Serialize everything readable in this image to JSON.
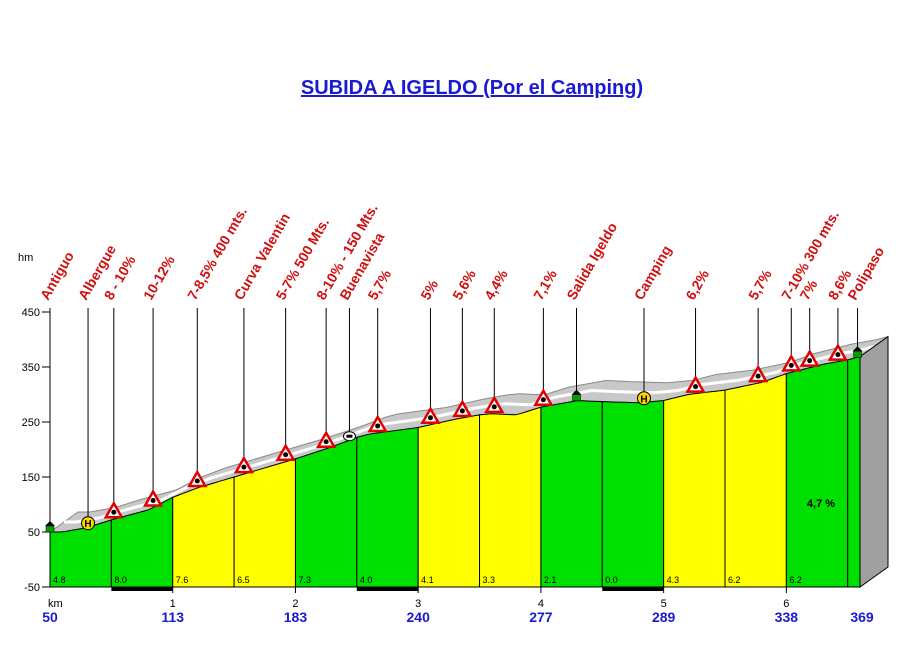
{
  "chart_data": {
    "type": "area",
    "title": "SUBIDA A IGELDO (Por el Camping)",
    "ylabel": "hm",
    "xlabel": "km",
    "ylim": [
      -50,
      450
    ],
    "yticks": [
      -50,
      50,
      150,
      250,
      350,
      450
    ],
    "km_ticks": [
      "1",
      "2",
      "3",
      "4",
      "5",
      "6"
    ],
    "elevation_labels": [
      "50",
      "113",
      "183",
      "240",
      "277",
      "289",
      "338",
      "369"
    ],
    "profile": {
      "x": [
        0,
        0.1,
        0.3,
        0.5,
        0.8,
        1.0,
        1.2,
        1.5,
        2.0,
        2.3,
        2.5,
        2.6,
        2.8,
        3.0,
        3.3,
        3.5,
        3.6,
        3.8,
        4.0,
        4.3,
        4.5,
        4.8,
        5.0,
        5.2,
        5.5,
        5.8,
        6.0,
        6.3,
        6.5,
        6.6
      ],
      "y": [
        50,
        50,
        58,
        72,
        90,
        113,
        130,
        150,
        183,
        205,
        222,
        228,
        234,
        240,
        255,
        263,
        265,
        263,
        277,
        289,
        287,
        285,
        289,
        300,
        308,
        322,
        338,
        355,
        363,
        369
      ]
    },
    "segments": [
      {
        "from": 0,
        "to": 1,
        "gradient": "4.8",
        "color": "#00e000"
      },
      {
        "from": 0.5,
        "to": 1,
        "gradient": "8.0",
        "color": "#00e000"
      },
      {
        "from": 1,
        "to": 1.5,
        "gradient": "7.6",
        "color": "#ffff00"
      },
      {
        "from": 1.5,
        "to": 2,
        "gradient": "6.5",
        "color": "#ffff00"
      },
      {
        "from": 2,
        "to": 2.5,
        "gradient": "7.3",
        "color": "#00e000"
      },
      {
        "from": 2.5,
        "to": 3,
        "gradient": "4.0",
        "color": "#00e000"
      },
      {
        "from": 3,
        "to": 3.5,
        "gradient": "4.1",
        "color": "#ffff00"
      },
      {
        "from": 3.5,
        "to": 4,
        "gradient": "3.3",
        "color": "#ffff00"
      },
      {
        "from": 4,
        "to": 4.5,
        "gradient": "2.1",
        "color": "#00e000"
      },
      {
        "from": 4.5,
        "to": 5,
        "gradient": "0.0",
        "color": "#00e000"
      },
      {
        "from": 5,
        "to": 5.5,
        "gradient": "4.3",
        "color": "#ffff00"
      },
      {
        "from": 5.5,
        "to": 6,
        "gradient": "6.2",
        "color": "#ffff00"
      },
      {
        "from": 6,
        "to": 6.5,
        "gradient": "6.2",
        "color": "#00e000"
      },
      {
        "from": 6.5,
        "to": 6.6,
        "gradient": "",
        "color": "#00e000"
      }
    ],
    "average_gradient": "4,7 %",
    "annotations": [
      {
        "x": 0.0,
        "label": "Antiguo",
        "icon": "house"
      },
      {
        "x": 0.31,
        "label": "Albergue",
        "icon": "hostel"
      },
      {
        "x": 0.52,
        "label": "8 - 10%",
        "icon": "warning"
      },
      {
        "x": 0.84,
        "label": "10-12%",
        "icon": "warning"
      },
      {
        "x": 1.2,
        "label": "7-8,5% 400 mts.",
        "icon": "warning"
      },
      {
        "x": 1.58,
        "label": "Curva Valentin",
        "icon": "warning"
      },
      {
        "x": 1.92,
        "label": "5-7% 500 Mts.",
        "icon": "warning"
      },
      {
        "x": 2.25,
        "label": "8-10% - 150 Mts.",
        "icon": "warning"
      },
      {
        "x": 2.44,
        "label": "Buenavista",
        "icon": "viewpoint"
      },
      {
        "x": 2.67,
        "label": "5,7%",
        "icon": "warning"
      },
      {
        "x": 3.1,
        "label": "5%",
        "icon": "warning"
      },
      {
        "x": 3.36,
        "label": "5,6%",
        "icon": "warning"
      },
      {
        "x": 3.62,
        "label": "4,4%",
        "icon": "warning"
      },
      {
        "x": 4.02,
        "label": "7,1%",
        "icon": "warning"
      },
      {
        "x": 4.29,
        "label": "Salida Igeldo",
        "icon": "house"
      },
      {
        "x": 4.84,
        "label": "Camping",
        "icon": "hostel"
      },
      {
        "x": 5.26,
        "label": "6,2%",
        "icon": "warning"
      },
      {
        "x": 5.77,
        "label": "5,7%",
        "icon": "warning"
      },
      {
        "x": 6.04,
        "label": "7-10% 300 mts.",
        "icon": "warning"
      },
      {
        "x": 6.19,
        "label": "7%",
        "icon": "warning"
      },
      {
        "x": 6.42,
        "label": "8,6%",
        "icon": "warning"
      },
      {
        "x": 6.58,
        "label": "Polipaso",
        "icon": "house"
      }
    ],
    "colors": {
      "green": "#00e000",
      "yellow": "#ffff00",
      "label_red": "#d01010",
      "title_blue": "#1a1ad0"
    }
  }
}
